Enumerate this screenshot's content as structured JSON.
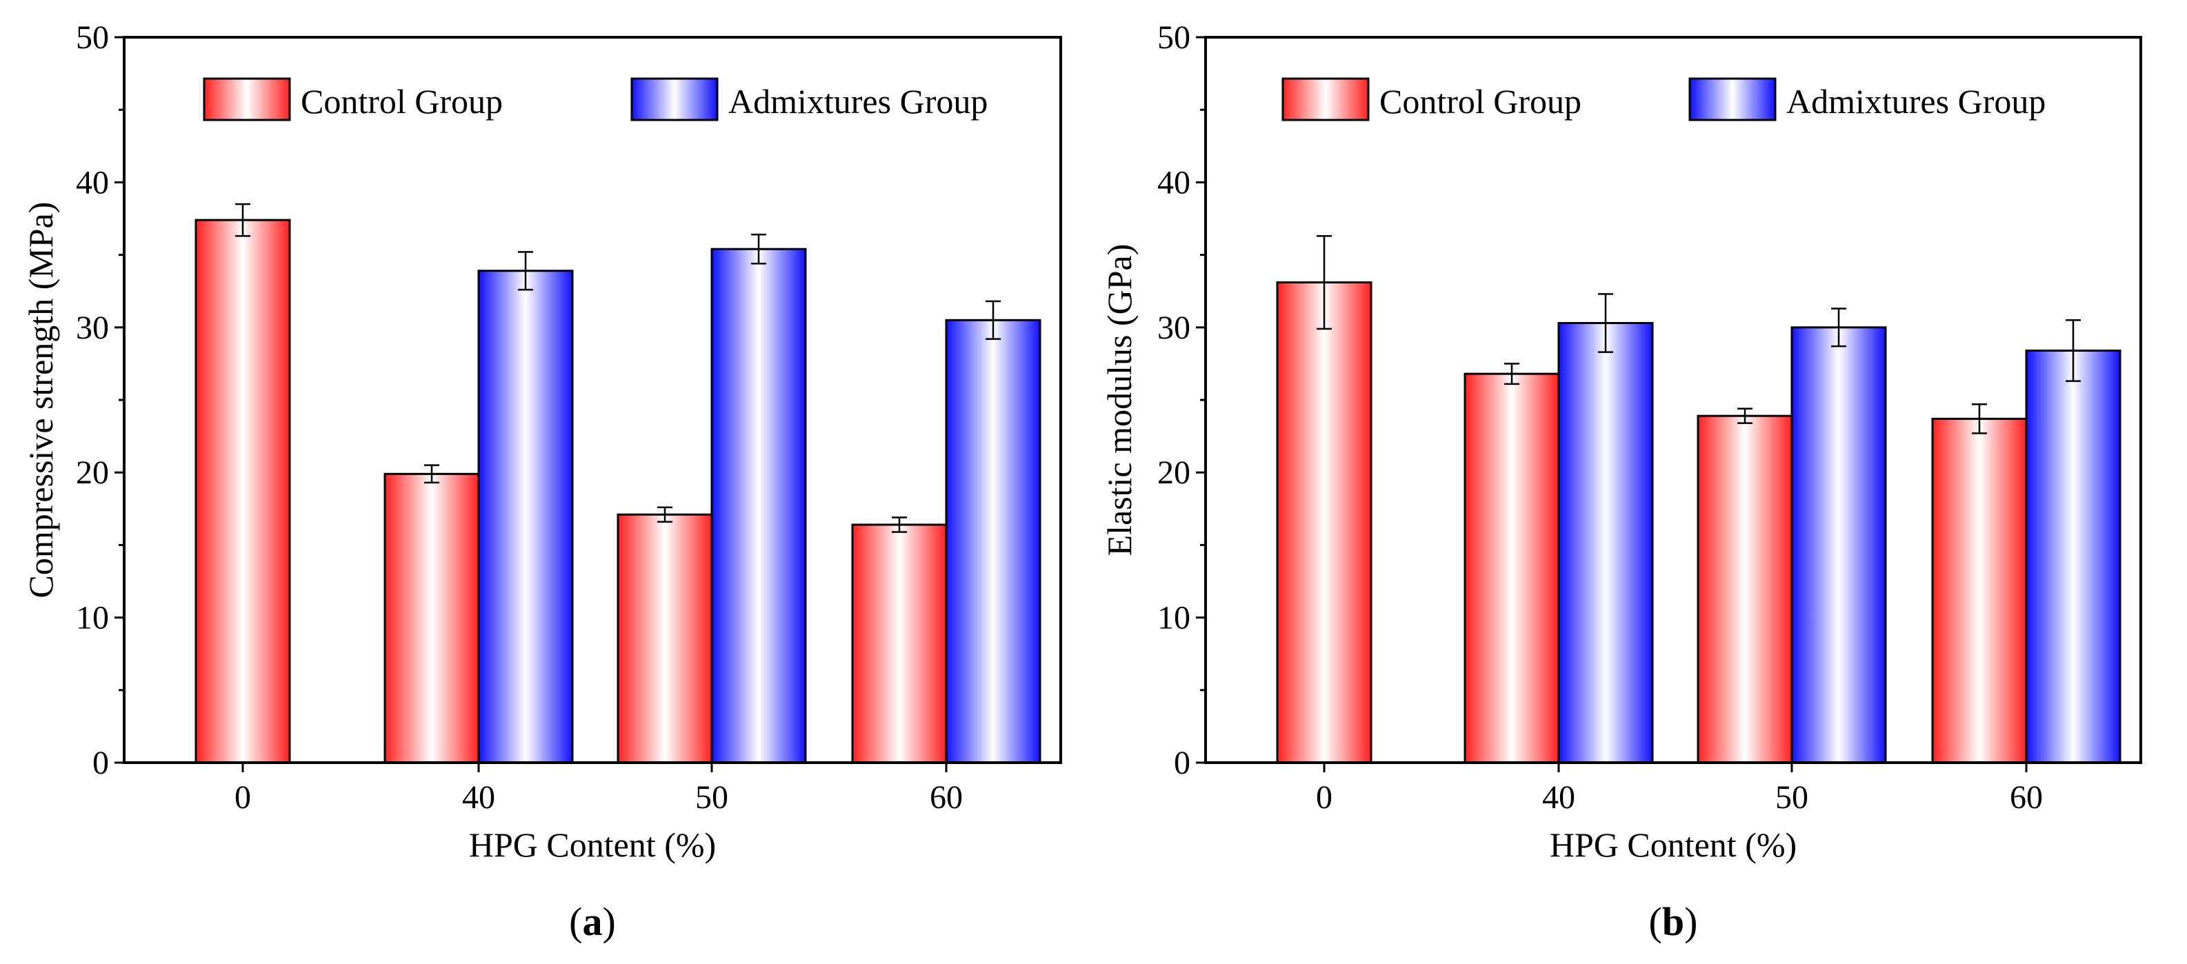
{
  "colors": {
    "control_edge": "#ff2020",
    "admix_edge": "#1010ff",
    "center": "#ffffff",
    "frame": "#000000"
  },
  "chart_data": [
    {
      "id": "a",
      "type": "bar",
      "panel_label": {
        "open": "(",
        "letter": "a",
        "close": ")"
      },
      "xlabel": "HPG Content (%)",
      "ylabel": "Compressive strength (MPa)",
      "ylim": [
        0,
        50
      ],
      "yticks": [
        0,
        10,
        20,
        30,
        40,
        50
      ],
      "categories": [
        "0",
        "40",
        "50",
        "60"
      ],
      "legend_position": "top",
      "series": [
        {
          "name": "Control Group",
          "style": "control",
          "values": [
            37.4,
            19.9,
            17.1,
            16.4
          ],
          "errors": [
            1.1,
            0.6,
            0.5,
            0.5
          ]
        },
        {
          "name": "Admixtures Group",
          "style": "admix",
          "values": [
            null,
            33.9,
            35.4,
            30.5
          ],
          "errors": [
            null,
            1.3,
            1.0,
            1.3
          ]
        }
      ]
    },
    {
      "id": "b",
      "type": "bar",
      "panel_label": {
        "open": "(",
        "letter": "b",
        "close": ")"
      },
      "xlabel": "HPG  Content (%)",
      "ylabel": "Elastic modulus (GPa)",
      "ylim": [
        0,
        50
      ],
      "yticks": [
        0,
        10,
        20,
        30,
        40,
        50
      ],
      "categories": [
        "0",
        "40",
        "50",
        "60"
      ],
      "legend_position": "top",
      "series": [
        {
          "name": "Control Group",
          "style": "control",
          "values": [
            33.1,
            26.8,
            23.9,
            23.7
          ],
          "errors": [
            3.2,
            0.7,
            0.5,
            1.0
          ]
        },
        {
          "name": "Admixtures Group",
          "style": "admix",
          "values": [
            null,
            30.3,
            30.0,
            28.4
          ],
          "errors": [
            null,
            2.0,
            1.3,
            2.1
          ]
        }
      ]
    }
  ]
}
